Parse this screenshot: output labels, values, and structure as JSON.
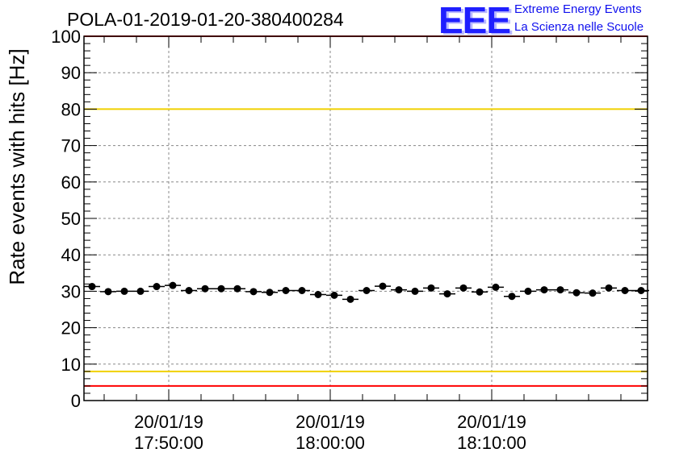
{
  "chart_data": {
    "type": "scatter",
    "title": "POLA-01-2019-01-20-380400284",
    "ylabel": "Rate events with hits [Hz]",
    "xlabel": "",
    "ylim": [
      0,
      100
    ],
    "y_ticks": [
      "0",
      "10",
      "20",
      "30",
      "40",
      "50",
      "60",
      "70",
      "80",
      "90",
      "100"
    ],
    "x_tick_labels": [
      {
        "date": "20/01/19",
        "time": "17:50:00",
        "minute": 0
      },
      {
        "date": "20/01/19",
        "time": "18:00:00",
        "minute": 10
      },
      {
        "date": "20/01/19",
        "time": "18:10:00",
        "minute": 20
      }
    ],
    "x_range_minutes": [
      -5.25,
      29.65
    ],
    "grid": true,
    "reference_lines": [
      {
        "y": 100,
        "color": "#ff0000"
      },
      {
        "y": 80,
        "color": "#f0d000"
      },
      {
        "y": 8,
        "color": "#f0d000"
      },
      {
        "y": 4,
        "color": "#ff0000"
      }
    ],
    "bin_width_minutes": 1,
    "x": [
      -4.75,
      -3.75,
      -2.75,
      -1.75,
      -0.75,
      0.25,
      1.25,
      2.25,
      3.25,
      4.25,
      5.25,
      6.25,
      7.25,
      8.25,
      9.25,
      10.25,
      11.25,
      12.25,
      13.25,
      14.25,
      15.25,
      16.25,
      17.25,
      18.25,
      19.25,
      20.25,
      21.25,
      22.25,
      23.25,
      24.25,
      25.25,
      26.25,
      27.25,
      28.25,
      29.25
    ],
    "values": [
      31.3,
      29.9,
      30.0,
      30.0,
      31.3,
      31.6,
      30.2,
      30.7,
      30.7,
      30.7,
      29.9,
      29.7,
      30.2,
      30.2,
      29.1,
      28.9,
      27.8,
      30.2,
      31.4,
      30.4,
      30.0,
      30.9,
      29.3,
      30.9,
      29.8,
      31.1,
      28.6,
      30.0,
      30.4,
      30.4,
      29.6,
      29.5,
      30.9,
      30.2,
      30.2
    ],
    "series_color": "#000000"
  },
  "logo": {
    "mark": "EEE",
    "line1": "Extreme Energy Events",
    "line2": "La Scienza nelle Scuole",
    "color": "#1f1fff"
  }
}
